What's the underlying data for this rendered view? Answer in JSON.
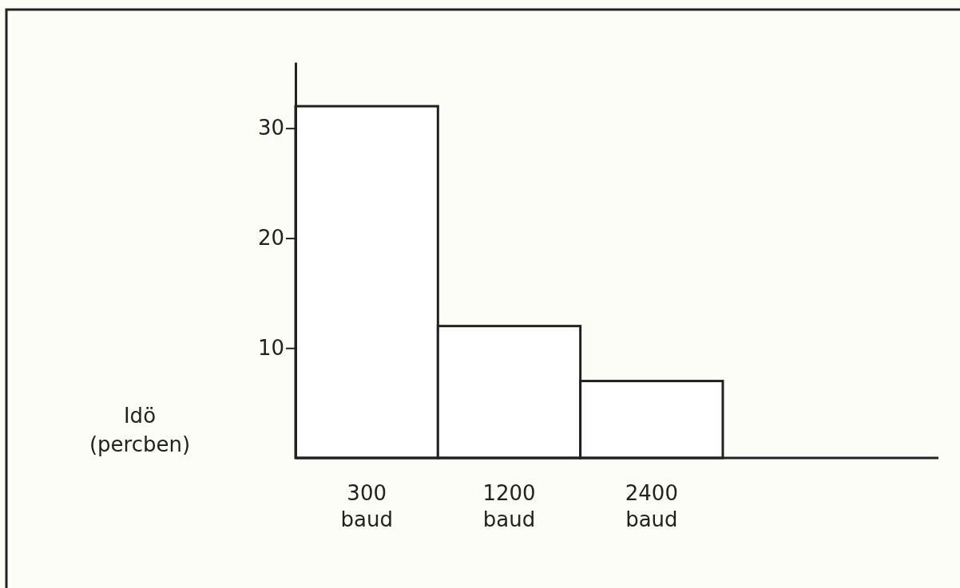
{
  "chart_data": {
    "type": "bar",
    "ylabel": "Idö (percben)",
    "categories": [
      "300 baud",
      "1200 baud",
      "2400 baud"
    ],
    "values": [
      32,
      12,
      7
    ],
    "color": "#ffffff",
    "ylim": [
      0,
      36
    ],
    "yticks": [
      10,
      20,
      30
    ],
    "grid": false
  }
}
